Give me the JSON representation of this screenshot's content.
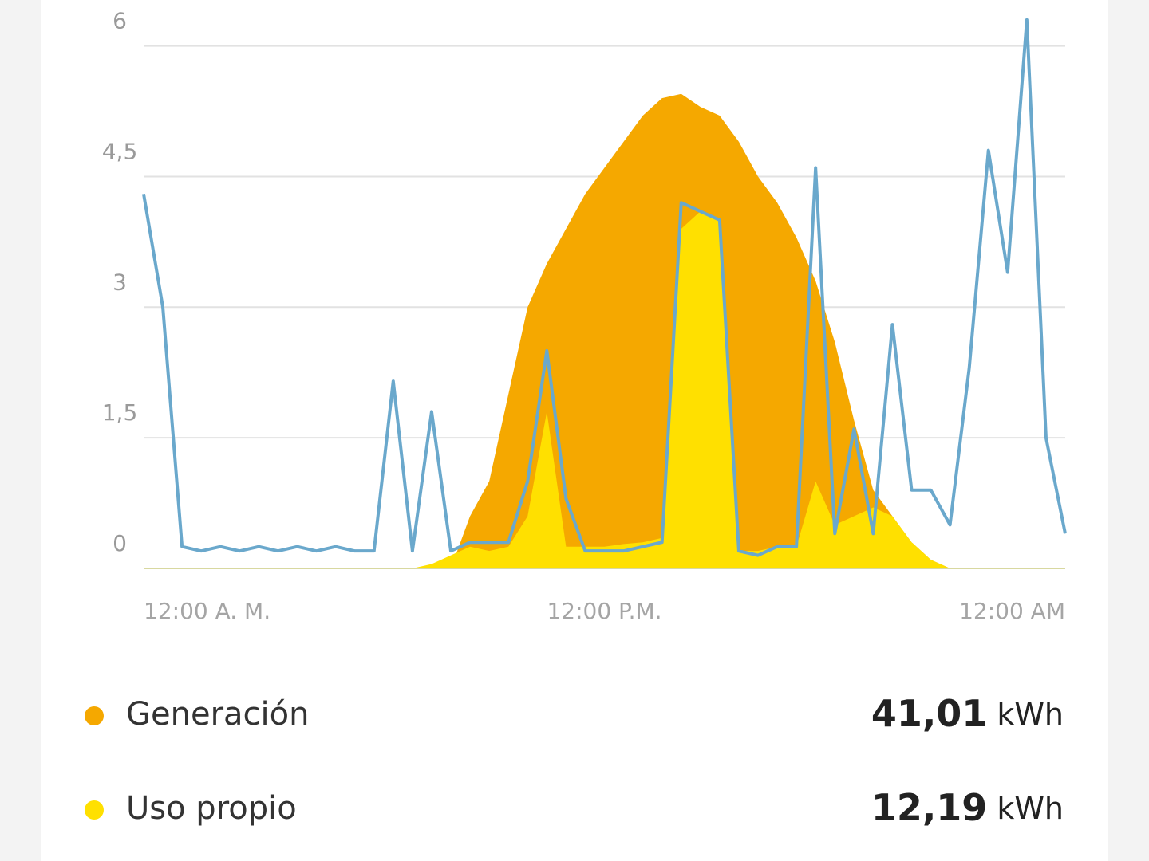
{
  "chart_data": {
    "type": "area",
    "x": [
      0,
      0.5,
      1,
      1.5,
      2,
      2.5,
      3,
      3.5,
      4,
      4.5,
      5,
      5.5,
      6,
      6.5,
      7,
      7.5,
      8,
      8.5,
      9,
      9.5,
      10,
      10.5,
      11,
      11.5,
      12,
      12.5,
      13,
      13.5,
      14,
      14.5,
      15,
      15.5,
      16,
      16.5,
      17,
      17.5,
      18,
      18.5,
      19,
      19.5,
      20,
      20.5,
      21,
      21.5,
      22,
      22.5,
      23,
      23.5,
      24
    ],
    "xlim": [
      0,
      24
    ],
    "xticks": [
      {
        "value": 0,
        "label": "12:00 A. M."
      },
      {
        "value": 12,
        "label": "12:00 P.M."
      },
      {
        "value": 24,
        "label": "12:00 AM"
      }
    ],
    "ylim": [
      0,
      6.5
    ],
    "yticks": [
      0,
      {
        "value": 1.5,
        "label": "1,5"
      },
      3,
      {
        "value": 4.5,
        "label": "4,5"
      },
      6
    ],
    "grid": true,
    "series": [
      {
        "name": "Generación",
        "color": "#f5a800",
        "total": "41,01",
        "unit": "kWh",
        "values": [
          0,
          0,
          0,
          0,
          0,
          0,
          0,
          0,
          0,
          0,
          0,
          0,
          0,
          0,
          0,
          0,
          0,
          0.6,
          1.0,
          2.0,
          3.0,
          3.5,
          3.9,
          4.3,
          4.6,
          4.9,
          5.2,
          5.4,
          5.45,
          5.3,
          5.2,
          4.9,
          4.5,
          4.2,
          3.8,
          3.3,
          2.6,
          1.7,
          0.9,
          0.6,
          0.3,
          0.1,
          0,
          0,
          0,
          0,
          0,
          0,
          0
        ]
      },
      {
        "name": "Uso propio",
        "color": "#ffe000",
        "total": "12,19",
        "unit": "kWh",
        "values": [
          0,
          0,
          0,
          0,
          0,
          0,
          0,
          0,
          0,
          0,
          0,
          0,
          0,
          0,
          0,
          0.05,
          0.15,
          0.25,
          0.2,
          0.25,
          0.6,
          1.8,
          0.25,
          0.25,
          0.25,
          0.28,
          0.3,
          0.35,
          3.9,
          4.1,
          4.0,
          0.2,
          0.2,
          0.25,
          0.25,
          1.0,
          0.5,
          0.6,
          0.7,
          0.6,
          0.3,
          0.1,
          0,
          0,
          0,
          0,
          0,
          0,
          0
        ]
      },
      {
        "color": "#6aa8cc",
        "values": [
          4.3,
          3.0,
          0.25,
          0.2,
          0.25,
          0.2,
          0.25,
          0.2,
          0.25,
          0.2,
          0.25,
          0.2,
          0.2,
          2.15,
          0.2,
          1.8,
          0.2,
          0.3,
          0.3,
          0.3,
          1.0,
          2.5,
          0.8,
          0.2,
          0.2,
          0.2,
          0.25,
          0.3,
          4.2,
          4.1,
          4.0,
          0.2,
          0.15,
          0.25,
          0.25,
          4.6,
          0.4,
          1.6,
          0.4,
          2.8,
          0.9,
          0.9,
          0.5,
          2.3,
          4.8,
          3.4,
          6.3,
          1.5,
          0.4
        ]
      }
    ]
  }
}
